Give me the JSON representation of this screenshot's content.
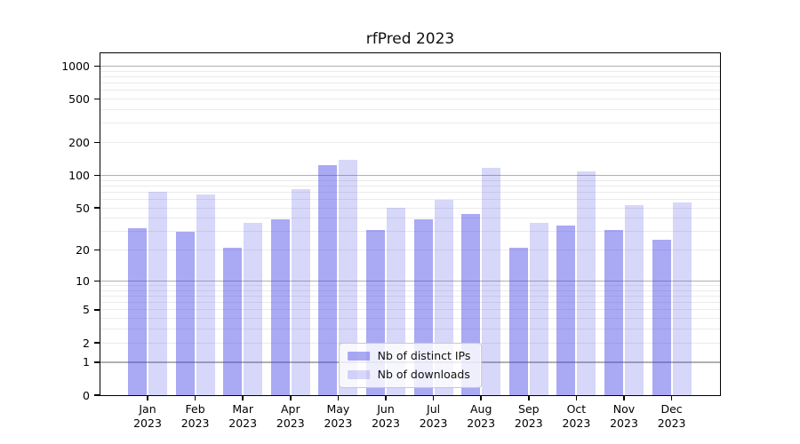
{
  "title": "rfPred 2023",
  "chart_data": {
    "type": "bar",
    "title": "rfPred 2023",
    "categories": [
      "Jan 2023",
      "Feb 2023",
      "Mar 2023",
      "Apr 2023",
      "May 2023",
      "Jun 2023",
      "Jul 2023",
      "Aug 2023",
      "Sep 2023",
      "Oct 2023",
      "Nov 2023",
      "Dec 2023"
    ],
    "series": [
      {
        "name": "Nb of distinct IPs",
        "color": "rgba(64,64,230,0.45)",
        "values": [
          32,
          30,
          21,
          39,
          123,
          31,
          39,
          44,
          21,
          34,
          31,
          25
        ]
      },
      {
        "name": "Nb of downloads",
        "color": "rgba(64,64,230,0.21)",
        "values": [
          71,
          67,
          36,
          74,
          138,
          50,
          60,
          117,
          36,
          108,
          53,
          56
        ]
      }
    ],
    "yscale": "log1p",
    "ylim": [
      0,
      1310
    ],
    "yticks": [
      0,
      1,
      2,
      5,
      10,
      20,
      50,
      100,
      200,
      500,
      1000
    ],
    "minor_gridlines": [
      3,
      4,
      6,
      7,
      8,
      9,
      30,
      40,
      60,
      70,
      80,
      90,
      300,
      400,
      600,
      700,
      800,
      900
    ],
    "xlabel": "",
    "ylabel": "",
    "grid": true,
    "legend_position": "lower center"
  },
  "style": {
    "background": "#ffffff",
    "axis_color": "#000000",
    "major_grid_color": "#b0b0b0",
    "minor_grid_color": "#ebebeb",
    "text_color": "#000000"
  }
}
